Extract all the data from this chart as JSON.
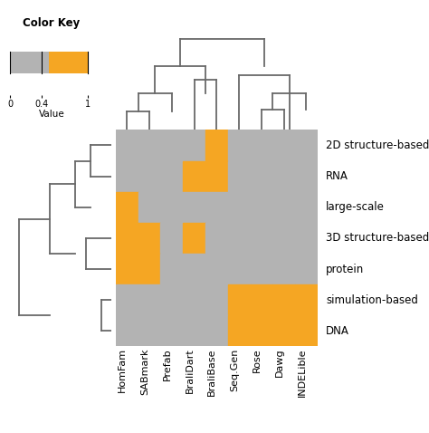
{
  "rows": [
    "2D structure-based",
    "RNA",
    "large-scale",
    "3D structure-based",
    "protein",
    "simulation-based",
    "DNA"
  ],
  "cols": [
    "HomFam",
    "SABmark",
    "Prefab",
    "BraliDart",
    "BraliBase",
    "Seq.Gen",
    "Rose",
    "Dawg",
    "INDELible"
  ],
  "matrix": [
    [
      0,
      0,
      0,
      0,
      1,
      0,
      0,
      0,
      0
    ],
    [
      0,
      0,
      0,
      1,
      1,
      0,
      0,
      0,
      0
    ],
    [
      1,
      0,
      0,
      0,
      0,
      0,
      0,
      0,
      0
    ],
    [
      1,
      1,
      0,
      1,
      0,
      0,
      0,
      0,
      0
    ],
    [
      1,
      1,
      0,
      0,
      0,
      0,
      0,
      0,
      0
    ],
    [
      0,
      0,
      0,
      0,
      0,
      1,
      1,
      1,
      1
    ],
    [
      0,
      0,
      0,
      0,
      0,
      1,
      1,
      1,
      1
    ]
  ],
  "orange_color": "#F5A623",
  "gray_color": "#B3B3B3",
  "bg_color": "#FFFFFF",
  "dend_color": "#696969",
  "color_key_title": "Color Key",
  "color_key_xlabel": "Value",
  "color_key_ticks": [
    0,
    0.4,
    1
  ]
}
